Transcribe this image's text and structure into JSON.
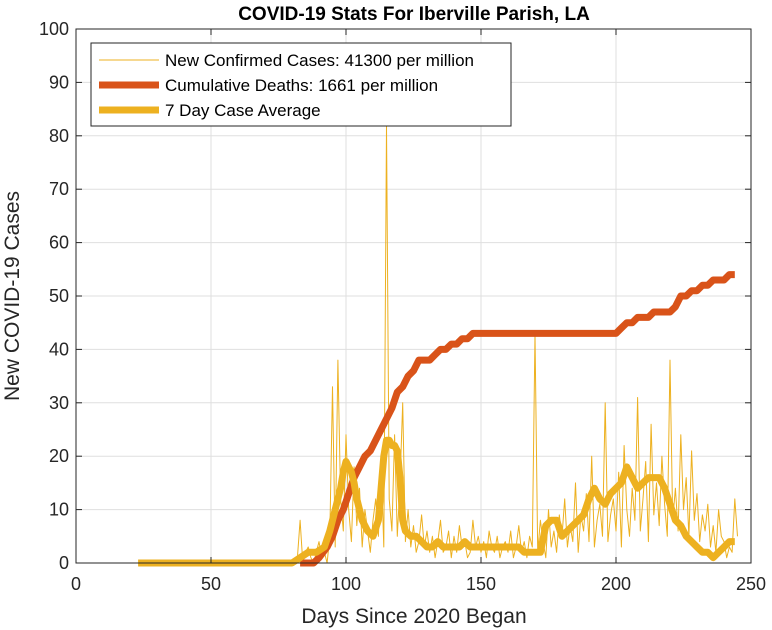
{
  "chart_data": {
    "type": "line",
    "title": "COVID-19 Stats For Iberville Parish, LA",
    "xlabel": "Days Since 2020 Began",
    "ylabel": "New COVID-19 Cases",
    "xlim": [
      0,
      250
    ],
    "ylim": [
      0,
      100
    ],
    "xticks": [
      0,
      50,
      100,
      150,
      200,
      250
    ],
    "yticks": [
      0,
      10,
      20,
      30,
      40,
      50,
      60,
      70,
      80,
      90,
      100
    ],
    "grid": true,
    "legend_position": "top-left",
    "series": [
      {
        "name": "New Confirmed Cases: 41300 per million",
        "color": "#EDB120",
        "style": "thin",
        "x": [
          23,
          60,
          80,
          82,
          83,
          84,
          85,
          86,
          87,
          88,
          89,
          90,
          91,
          92,
          93,
          94,
          95,
          96,
          97,
          98,
          99,
          100,
          101,
          102,
          103,
          104,
          105,
          106,
          107,
          108,
          109,
          110,
          111,
          112,
          113,
          114,
          115,
          116,
          117,
          118,
          119,
          120,
          121,
          122,
          123,
          124,
          125,
          126,
          127,
          128,
          129,
          130,
          131,
          132,
          133,
          134,
          135,
          136,
          137,
          138,
          139,
          140,
          141,
          142,
          143,
          144,
          145,
          146,
          147,
          148,
          149,
          150,
          151,
          152,
          153,
          154,
          155,
          156,
          157,
          158,
          159,
          160,
          161,
          162,
          163,
          164,
          165,
          166,
          167,
          168,
          169,
          170,
          171,
          172,
          173,
          174,
          175,
          176,
          177,
          178,
          179,
          180,
          181,
          182,
          183,
          184,
          185,
          186,
          187,
          188,
          189,
          190,
          191,
          192,
          193,
          194,
          195,
          196,
          197,
          198,
          199,
          200,
          201,
          202,
          203,
          204,
          205,
          206,
          207,
          208,
          209,
          210,
          211,
          212,
          213,
          214,
          215,
          216,
          217,
          218,
          219,
          220,
          221,
          222,
          223,
          224,
          225,
          226,
          227,
          228,
          229,
          230,
          231,
          232,
          233,
          234,
          235,
          236,
          237,
          238,
          239,
          240,
          241,
          242,
          243,
          244,
          245
        ],
        "y": [
          0,
          0,
          0,
          1,
          8,
          0,
          2,
          3,
          1,
          0,
          2,
          4,
          1,
          2,
          0,
          5,
          33,
          3,
          38,
          12,
          6,
          24,
          10,
          4,
          18,
          7,
          14,
          3,
          10,
          6,
          2,
          8,
          12,
          5,
          19,
          3,
          82,
          12,
          6,
          24,
          5,
          15,
          30,
          4,
          10,
          3,
          7,
          2,
          4,
          9,
          3,
          6,
          2,
          5,
          1,
          4,
          8,
          2,
          3,
          6,
          1,
          5,
          2,
          7,
          3,
          4,
          1,
          2,
          8,
          3,
          5,
          2,
          4,
          1,
          6,
          3,
          2,
          5,
          1,
          3,
          4,
          2,
          6,
          1,
          3,
          7,
          2,
          4,
          1,
          5,
          3,
          43,
          2,
          8,
          4,
          1,
          10,
          3,
          6,
          2,
          9,
          5,
          12,
          3,
          7,
          4,
          15,
          2,
          9,
          6,
          13,
          4,
          20,
          3,
          8,
          11,
          5,
          30,
          4,
          9,
          12,
          6,
          17,
          3,
          22,
          10,
          5,
          14,
          8,
          31,
          6,
          12,
          19,
          4,
          26,
          9,
          15,
          7,
          20,
          11,
          5,
          38,
          8,
          14,
          6,
          24,
          10,
          16,
          5,
          21,
          8,
          13,
          4,
          9,
          6,
          11,
          3,
          7,
          2,
          10,
          5,
          4,
          1,
          3,
          2,
          12,
          5
        ]
      },
      {
        "name": "Cumulative Deaths: 1661 per million",
        "color": "#D95319",
        "style": "thick",
        "x": [
          83,
          88,
          90,
          93,
          95,
          97,
          99,
          101,
          103,
          105,
          107,
          109,
          111,
          113,
          115,
          117,
          119,
          121,
          123,
          125,
          127,
          129,
          131,
          133,
          135,
          137,
          139,
          141,
          143,
          145,
          147,
          150,
          153,
          155,
          157,
          160,
          165,
          170,
          175,
          180,
          185,
          190,
          195,
          198,
          200,
          202,
          204,
          206,
          208,
          210,
          212,
          214,
          216,
          218,
          220,
          222,
          224,
          226,
          228,
          230,
          232,
          234,
          236,
          238,
          240,
          242,
          244
        ],
        "y": [
          0,
          0,
          1,
          3,
          5,
          8,
          10,
          13,
          16,
          18,
          20,
          21,
          23,
          25,
          27,
          29,
          32,
          33,
          35,
          36,
          38,
          38,
          38,
          39,
          40,
          40,
          41,
          41,
          42,
          42,
          43,
          43,
          43,
          43,
          43,
          43,
          43,
          43,
          43,
          43,
          43,
          43,
          43,
          43,
          43,
          44,
          45,
          45,
          46,
          46,
          46,
          47,
          47,
          47,
          47,
          48,
          50,
          50,
          51,
          51,
          52,
          52,
          53,
          53,
          53,
          54,
          54
        ]
      },
      {
        "name": "7 Day Case Average",
        "color": "#EDB120",
        "style": "thick",
        "x": [
          23,
          60,
          80,
          83,
          86,
          89,
          92,
          94,
          96,
          98,
          99,
          100,
          101,
          102,
          103,
          104,
          106,
          108,
          110,
          112,
          113,
          114,
          115,
          116,
          117,
          118,
          119,
          120,
          121,
          122,
          124,
          126,
          128,
          130,
          132,
          134,
          136,
          138,
          140,
          142,
          144,
          146,
          148,
          150,
          152,
          154,
          156,
          158,
          160,
          162,
          164,
          166,
          168,
          170,
          172,
          174,
          176,
          178,
          180,
          182,
          184,
          186,
          188,
          190,
          192,
          194,
          196,
          198,
          200,
          202,
          204,
          206,
          208,
          210,
          212,
          214,
          216,
          218,
          220,
          222,
          224,
          226,
          228,
          230,
          232,
          234,
          236,
          238,
          240,
          242,
          244
        ],
        "y": [
          0,
          0,
          0,
          1,
          2,
          2,
          3,
          6,
          10,
          14,
          17,
          19,
          18,
          17,
          15,
          12,
          8,
          6,
          5,
          8,
          14,
          20,
          23,
          23,
          22,
          22,
          21,
          16,
          8,
          6,
          5,
          5,
          4,
          3,
          3,
          4,
          3,
          3,
          3,
          3,
          4,
          3,
          3,
          3,
          3,
          3,
          3,
          3,
          3,
          3,
          3,
          2,
          2,
          2,
          2,
          7,
          8,
          8,
          5,
          6,
          7,
          8,
          9,
          12,
          14,
          12,
          11,
          13,
          14,
          15,
          18,
          16,
          14,
          15,
          16,
          16,
          16,
          14,
          11,
          8,
          7,
          5,
          4,
          3,
          2,
          2,
          1,
          2,
          3,
          4,
          4
        ]
      }
    ]
  }
}
